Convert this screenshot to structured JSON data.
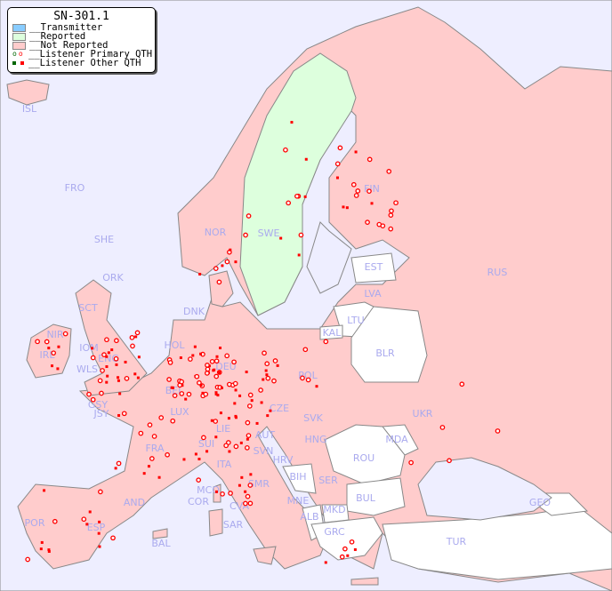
{
  "title": "SN-301.1",
  "legend": {
    "items": [
      {
        "label": "__Transmitter",
        "color": "#88ccff"
      },
      {
        "label": "__Reported",
        "color": "#ddffdd"
      },
      {
        "label": "__Not Reported",
        "color": "#ffcccc"
      },
      {
        "label": "__Listener Primary QTH",
        "symbol": "open-circle"
      },
      {
        "label": "__Listener Other QTH",
        "symbol": "filled-square"
      }
    ]
  },
  "colors": {
    "sea": "#eeeeff",
    "not_reported": "#ffcccc",
    "reported": "#ddffdd",
    "no_data": "#ffffff",
    "border": "#888888",
    "label": "#aaaaee",
    "listener": "#ff0000"
  },
  "labels": [
    "ISL",
    "FRO",
    "SHE",
    "ORK",
    "NOR",
    "SWE",
    "FIN",
    "RUS",
    "EST",
    "LVA",
    "LTU",
    "KAL",
    "BLR",
    "DNK",
    "HOL",
    "DEU",
    "POL",
    "SCT",
    "NIR",
    "IRL",
    "IOM",
    "WLS",
    "ENG",
    "GSY",
    "JSY",
    "BEL",
    "LUX",
    "FRA",
    "SUI",
    "LIE",
    "AUT",
    "CZE",
    "SVK",
    "HNG",
    "UKR",
    "MDA",
    "ROU",
    "SVN",
    "HRV",
    "BIH",
    "SER",
    "ITA",
    "MCO",
    "COR",
    "SMR",
    "CVA",
    "MNE",
    "ALB",
    "MKD",
    "BUL",
    "GRC",
    "TUR",
    "GEO",
    "AND",
    "POR",
    "ESP",
    "BAL",
    "SAR"
  ]
}
